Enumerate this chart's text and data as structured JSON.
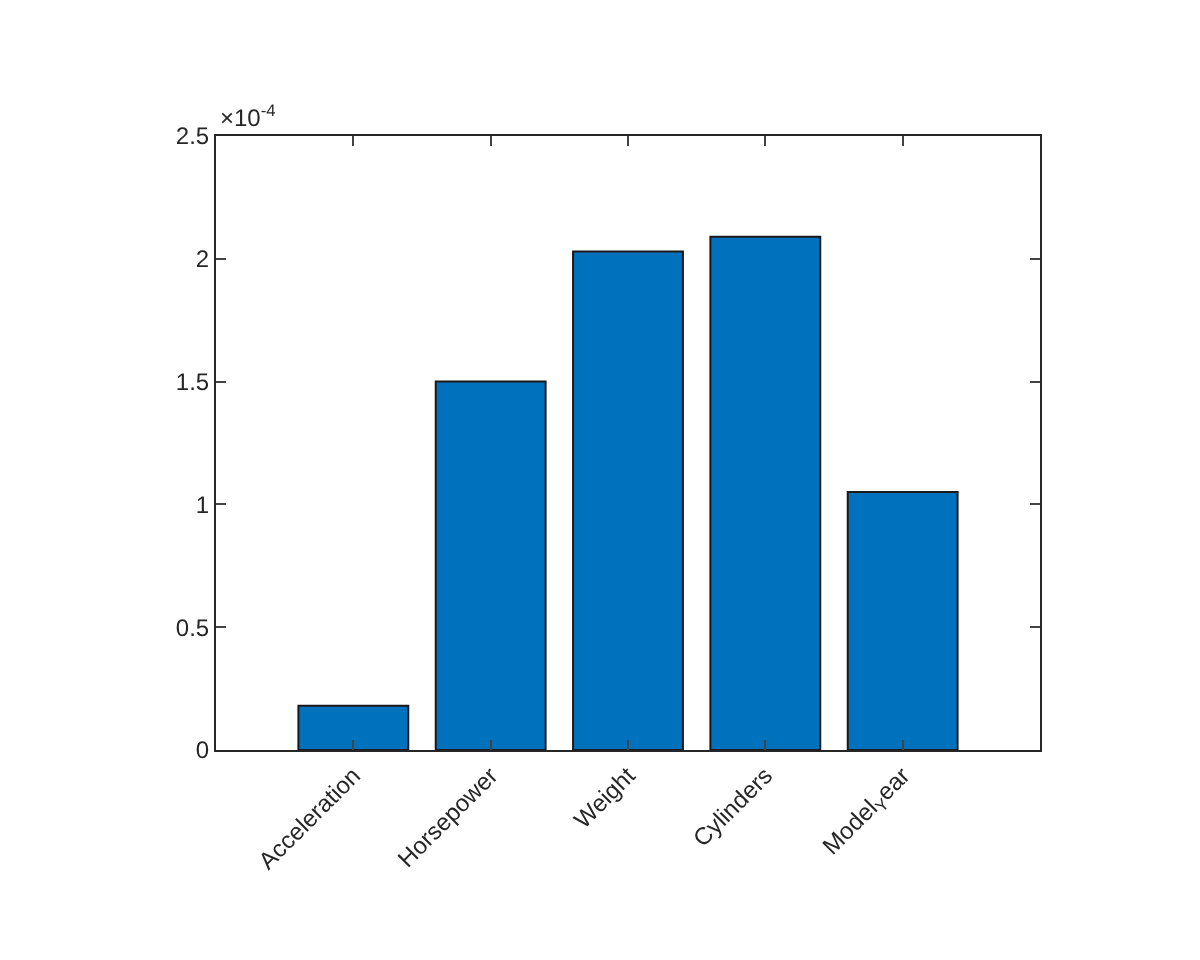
{
  "chart_data": {
    "type": "bar",
    "categories": [
      "Acceleration",
      "Horsepower",
      "Weight",
      "Cylinders",
      "Model$_{Y}$ear"
    ],
    "values": [
      0.18,
      1.5,
      2.03,
      2.09,
      1.05
    ],
    "color": "#0072bd",
    "ylim": [
      0,
      2.5
    ],
    "yticks": [
      0,
      0.5,
      1,
      1.5,
      2,
      2.5
    ],
    "annotations": [
      "×10$^{-4}$"
    ],
    "legend": false
  }
}
